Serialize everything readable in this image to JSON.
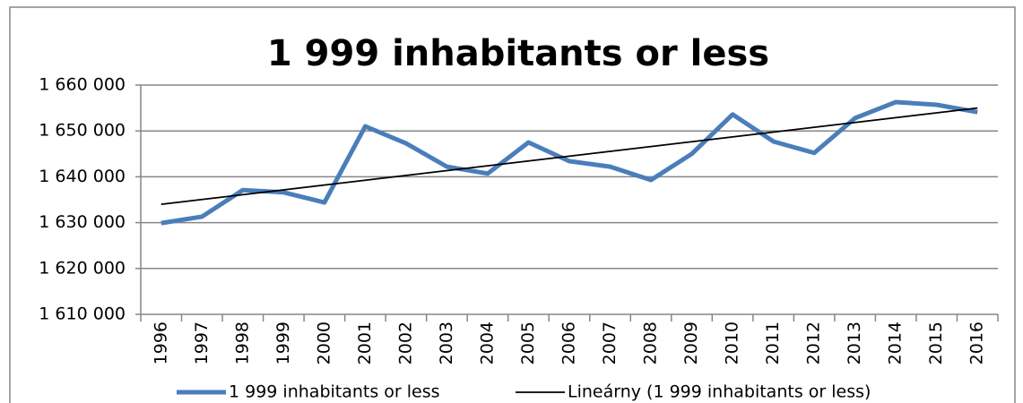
{
  "chart_data": {
    "type": "line",
    "title": "1 999 inhabitants or less",
    "categories": [
      "1996",
      "1997",
      "1998",
      "1999",
      "2000",
      "2001",
      "2002",
      "2003",
      "2004",
      "2005",
      "2006",
      "2007",
      "2008",
      "2009",
      "2010",
      "2011",
      "2012",
      "2013",
      "2014",
      "2015",
      "2016"
    ],
    "series": [
      {
        "name": "1 999 inhabitants or less",
        "color": "#4a7ebb",
        "values": [
          1629900,
          1631300,
          1637100,
          1636600,
          1634400,
          1651000,
          1647300,
          1642200,
          1640700,
          1647500,
          1643400,
          1642200,
          1639300,
          1645000,
          1653600,
          1647700,
          1645200,
          1652800,
          1656300,
          1655700,
          1654100
        ]
      },
      {
        "name": "Lineárny (1 999 inhabitants or less)",
        "color": "#000000",
        "values": [
          1634000,
          1635050,
          1636100,
          1637150,
          1638200,
          1639250,
          1640300,
          1641350,
          1642400,
          1643450,
          1644500,
          1645550,
          1646600,
          1647650,
          1648700,
          1649750,
          1650800,
          1651850,
          1652900,
          1653950,
          1655000
        ]
      }
    ],
    "ylim": [
      1610000,
      1660000
    ],
    "yticks": [
      {
        "value": 1610000,
        "label": "1 610 000"
      },
      {
        "value": 1620000,
        "label": "1 620 000"
      },
      {
        "value": 1630000,
        "label": "1 630 000"
      },
      {
        "value": 1640000,
        "label": "1 640 000"
      },
      {
        "value": 1650000,
        "label": "1 650 000"
      },
      {
        "value": 1660000,
        "label": "1 660 000"
      }
    ],
    "grid": true,
    "legend": "bottom"
  }
}
